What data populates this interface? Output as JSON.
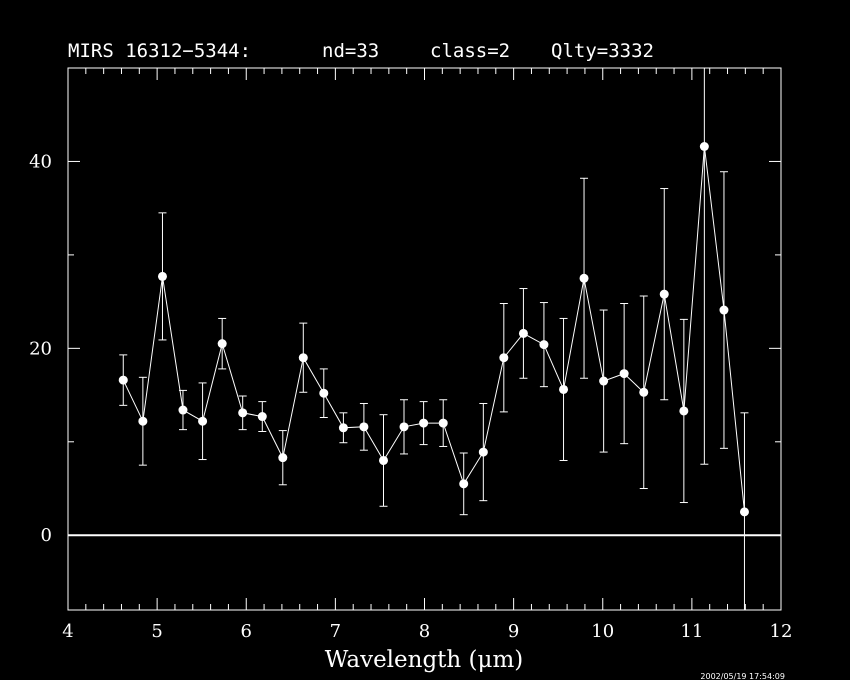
{
  "chart_data": {
    "type": "scatter",
    "title": {
      "object": "MIRS 16312−5344:",
      "nd": "nd=33",
      "class": "class=2",
      "quality": "Qlty=3332"
    },
    "xlabel": "Wavelength (μm)",
    "ylabel": "",
    "xlim": [
      4,
      12
    ],
    "ylim": [
      -8,
      50
    ],
    "x_ticks": [
      4,
      5,
      6,
      7,
      8,
      9,
      10,
      11,
      12
    ],
    "y_ticks": [
      0,
      20,
      40
    ],
    "zero_line": 0,
    "grid": false,
    "timestamp": "2002/05/19 17:54:09",
    "colors": {
      "background": "#000000",
      "foreground": "#ffffff"
    },
    "series": [
      {
        "x": [
          4.62,
          4.84,
          5.06,
          5.29,
          5.51,
          5.73,
          5.96,
          6.18,
          6.41,
          6.64,
          6.87,
          7.09,
          7.32,
          7.54,
          7.77,
          7.99,
          8.21,
          8.44,
          8.66,
          8.89,
          9.11,
          9.34,
          9.56,
          9.79,
          10.01,
          10.24,
          10.46,
          10.69,
          10.91,
          11.14,
          11.36,
          11.59
        ],
        "y": [
          16.6,
          12.2,
          27.7,
          13.4,
          12.2,
          20.5,
          13.1,
          12.7,
          8.3,
          19.0,
          15.2,
          11.5,
          11.6,
          8.0,
          11.6,
          12.0,
          12.0,
          5.5,
          8.9,
          19.0,
          21.6,
          20.4,
          15.6,
          27.5,
          16.5,
          17.3,
          15.3,
          25.8,
          13.3,
          41.6,
          24.1,
          2.5
        ],
        "yerr": [
          2.7,
          4.7,
          6.8,
          2.1,
          4.1,
          2.7,
          1.8,
          1.6,
          2.9,
          3.7,
          2.6,
          1.6,
          2.5,
          4.9,
          2.9,
          2.3,
          2.5,
          3.3,
          5.2,
          5.8,
          4.8,
          4.5,
          7.6,
          10.7,
          7.6,
          7.5,
          10.3,
          11.3,
          9.8,
          34.0,
          14.8,
          10.6
        ]
      }
    ]
  }
}
